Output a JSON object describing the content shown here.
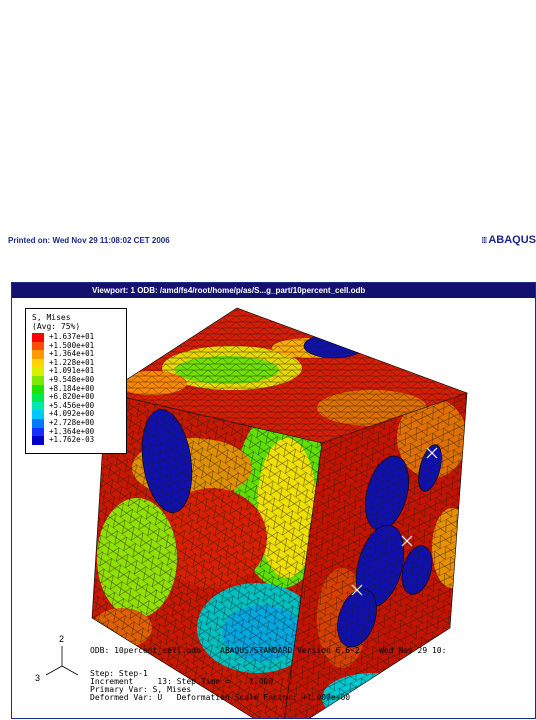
{
  "header": {
    "printed_on": "Printed on: Wed Nov 29 11:08:02 CET 2006",
    "brand": "ABAQUS"
  },
  "viewport": {
    "title": "Viewport: 1     ODB: /amd/fs4/root/home/p/as/S...g_part/10percent_cell.odb"
  },
  "legend": {
    "title": "S, Mises",
    "subtitle": "(Avg: 75%)",
    "levels": [
      {
        "label": "+1.637e+01",
        "color": "#ff0000"
      },
      {
        "label": "+1.500e+01",
        "color": "#ff4d00"
      },
      {
        "label": "+1.364e+01",
        "color": "#ff9900"
      },
      {
        "label": "+1.228e+01",
        "color": "#ffd400"
      },
      {
        "label": "+1.091e+01",
        "color": "#d8f000"
      },
      {
        "label": "+9.548e+00",
        "color": "#7fe800"
      },
      {
        "label": "+8.184e+00",
        "color": "#22e000"
      },
      {
        "label": "+6.820e+00",
        "color": "#00e84a"
      },
      {
        "label": "+5.456e+00",
        "color": "#00e8b0"
      },
      {
        "label": "+4.092e+00",
        "color": "#00c8ff"
      },
      {
        "label": "+2.728e+00",
        "color": "#007bff"
      },
      {
        "label": "+1.364e+00",
        "color": "#1530ff"
      },
      {
        "label": "+1.762e-03",
        "color": "#0000c8"
      }
    ]
  },
  "info": {
    "odb_line": "ODB: 10percent_cell.odb    ABAQUS/STANDARD Version 6.6-2    Wed Nov 29 10:",
    "step": "Step: Step-1",
    "increment": "Increment     13: Step Time =    1.000",
    "primary_var": "Primary Var: S, Mises",
    "deformed_var": "Deformed Var: U   Deformation Scale Factor: +1.000e+00"
  },
  "triad": {
    "axis_up": "2",
    "axis_left": "3"
  },
  "colors": {
    "title_bar": "#12126e",
    "high_stress": "#cc0000",
    "inclusion": "#1010a0"
  }
}
